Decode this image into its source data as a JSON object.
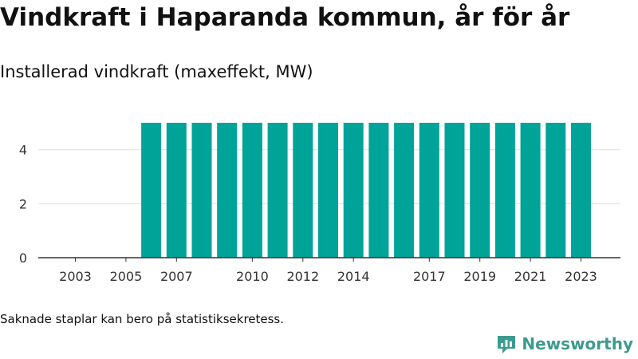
{
  "title": "Vindkraft i Haparanda kommun, år för år",
  "subtitle": "Installerad vindkraft (maxeffekt, MW)",
  "footnote": "Saknade staplar kan bero på statistiksekretess.",
  "brand": {
    "name": "Newsworthy",
    "icon": "newsworthy-logo-icon"
  },
  "colors": {
    "bar": "#00a398",
    "grid": "#dddddd",
    "axis": "#333333",
    "brand": "#3d9a8f"
  },
  "chart_data": {
    "type": "bar",
    "categories": [
      "2003",
      "2004",
      "2005",
      "2006",
      "2007",
      "2008",
      "2009",
      "2010",
      "2011",
      "2012",
      "2013",
      "2014",
      "2015",
      "2016",
      "2017",
      "2018",
      "2019",
      "2020",
      "2021",
      "2022",
      "2023"
    ],
    "values": [
      0,
      0,
      0,
      5,
      5,
      5,
      5,
      5,
      5,
      5,
      5,
      5,
      5,
      5,
      5,
      5,
      5,
      5,
      5,
      5,
      5
    ],
    "x_tick_labels": [
      "2003",
      "2005",
      "2007",
      "2010",
      "2012",
      "2014",
      "2017",
      "2019",
      "2021",
      "2023"
    ],
    "y_ticks": [
      0,
      2,
      4
    ],
    "ylim": [
      0,
      5.5
    ],
    "grid": true
  }
}
